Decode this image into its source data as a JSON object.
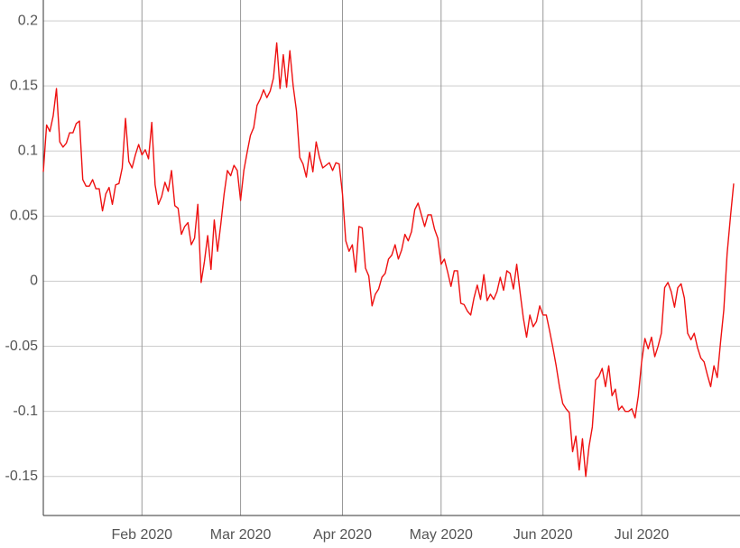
{
  "chart_data": {
    "type": "line",
    "color": "#ee1111",
    "grid": true,
    "ylim": [
      -0.18,
      0.216
    ],
    "yticks": [
      -0.15,
      -0.1,
      -0.05,
      0,
      0.05,
      0.1,
      0.15,
      0.2
    ],
    "categories": [
      null,
      null,
      null,
      null,
      null,
      null,
      null,
      null,
      null,
      null,
      null,
      null,
      null,
      null,
      null,
      null,
      null,
      null,
      null,
      null,
      null,
      null,
      null,
      null,
      null,
      null,
      null,
      null,
      null,
      null,
      "Feb 2020",
      null,
      null,
      null,
      null,
      null,
      null,
      null,
      null,
      null,
      null,
      null,
      null,
      null,
      null,
      null,
      null,
      null,
      null,
      null,
      null,
      null,
      null,
      null,
      null,
      null,
      null,
      null,
      null,
      null,
      "Mar 2020",
      null,
      null,
      null,
      null,
      null,
      null,
      null,
      null,
      null,
      null,
      null,
      null,
      null,
      null,
      null,
      null,
      null,
      null,
      null,
      null,
      null,
      null,
      null,
      null,
      null,
      null,
      null,
      null,
      null,
      null,
      "Apr 2020",
      null,
      null,
      null,
      null,
      null,
      null,
      null,
      null,
      null,
      null,
      null,
      null,
      null,
      null,
      null,
      null,
      null,
      null,
      null,
      null,
      null,
      null,
      null,
      null,
      null,
      null,
      null,
      null,
      null,
      "May 2020",
      null,
      null,
      null,
      null,
      null,
      null,
      null,
      null,
      null,
      null,
      null,
      null,
      null,
      null,
      null,
      null,
      null,
      null,
      null,
      null,
      null,
      null,
      null,
      null,
      null,
      null,
      null,
      null,
      null,
      null,
      "Jun 2020",
      null,
      null,
      null,
      null,
      null,
      null,
      null,
      null,
      null,
      null,
      null,
      null,
      null,
      null,
      null,
      null,
      null,
      null,
      null,
      null,
      null,
      null,
      null,
      null,
      null,
      null,
      null,
      null,
      null,
      "Jul 2020",
      null,
      null,
      null,
      null,
      null,
      null,
      null,
      null,
      null,
      null,
      null,
      null,
      null,
      null,
      null,
      null,
      null,
      null,
      null,
      null,
      null,
      null,
      null,
      null,
      null,
      null,
      null,
      null
    ],
    "values": [
      0.084,
      0.12,
      0.115,
      0.127,
      0.148,
      0.107,
      0.103,
      0.106,
      0.114,
      0.114,
      0.121,
      0.123,
      0.078,
      0.073,
      0.073,
      0.078,
      0.071,
      0.071,
      0.054,
      0.067,
      0.072,
      0.059,
      0.074,
      0.075,
      0.087,
      0.125,
      0.092,
      0.087,
      0.097,
      0.105,
      0.097,
      0.101,
      0.094,
      0.122,
      0.074,
      0.059,
      0.065,
      0.076,
      0.069,
      0.085,
      0.058,
      0.056,
      0.036,
      0.042,
      0.045,
      0.028,
      0.033,
      0.059,
      -0.001,
      0.015,
      0.035,
      0.009,
      0.047,
      0.023,
      0.044,
      0.067,
      0.085,
      0.081,
      0.089,
      0.085,
      0.062,
      0.085,
      0.099,
      0.112,
      0.118,
      0.135,
      0.14,
      0.147,
      0.141,
      0.146,
      0.156,
      0.183,
      0.148,
      0.174,
      0.149,
      0.177,
      0.15,
      0.131,
      0.095,
      0.09,
      0.08,
      0.099,
      0.084,
      0.107,
      0.095,
      0.087,
      0.089,
      0.091,
      0.085,
      0.091,
      0.09,
      0.067,
      0.031,
      0.023,
      0.028,
      0.007,
      0.042,
      0.041,
      0.01,
      0.004,
      -0.019,
      -0.01,
      -0.006,
      0.003,
      0.006,
      0.017,
      0.02,
      0.028,
      0.017,
      0.024,
      0.036,
      0.031,
      0.038,
      0.055,
      0.06,
      0.051,
      0.042,
      0.051,
      0.051,
      0.04,
      0.033,
      0.013,
      0.017,
      0.007,
      -0.004,
      0.008,
      0.008,
      -0.017,
      -0.018,
      -0.023,
      -0.026,
      -0.013,
      -0.003,
      -0.014,
      0.005,
      -0.015,
      -0.01,
      -0.014,
      -0.008,
      0.003,
      -0.007,
      0.008,
      0.006,
      -0.006,
      0.013,
      -0.008,
      -0.028,
      -0.043,
      -0.026,
      -0.035,
      -0.031,
      -0.019,
      -0.026,
      -0.026,
      -0.038,
      -0.051,
      -0.065,
      -0.081,
      -0.094,
      -0.098,
      -0.101,
      -0.131,
      -0.119,
      -0.145,
      -0.121,
      -0.15,
      -0.127,
      -0.112,
      -0.076,
      -0.073,
      -0.067,
      -0.081,
      -0.065,
      -0.088,
      -0.083,
      -0.099,
      -0.096,
      -0.1,
      -0.1,
      -0.098,
      -0.105,
      -0.088,
      -0.062,
      -0.044,
      -0.052,
      -0.043,
      -0.058,
      -0.05,
      -0.04,
      -0.005,
      -0.001,
      -0.008,
      -0.02,
      -0.005,
      -0.002,
      -0.013,
      -0.04,
      -0.045,
      -0.04,
      -0.051,
      -0.059,
      -0.062,
      -0.072,
      -0.081,
      -0.065,
      -0.074,
      -0.047,
      -0.022,
      0.021,
      0.049,
      0.075
    ]
  }
}
